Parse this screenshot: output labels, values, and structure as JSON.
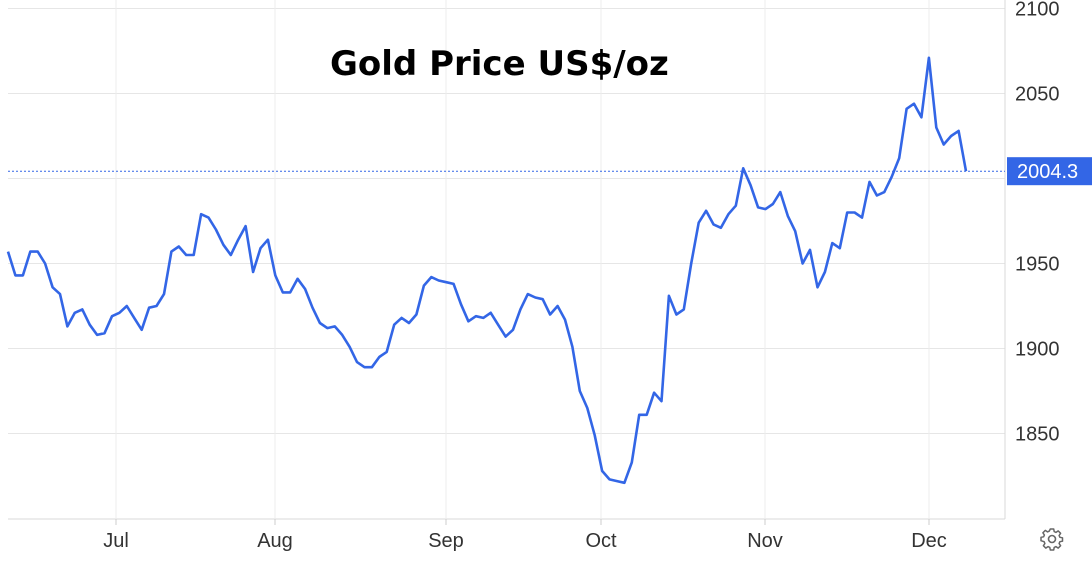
{
  "chart_data": {
    "type": "line",
    "title": "Gold Price US$/oz",
    "xlabel": "",
    "ylabel": "",
    "ylim": [
      1800,
      2100
    ],
    "y_ticks": [
      "2100",
      "2050",
      "1950",
      "1900",
      "1850"
    ],
    "x_ticks": [
      "Jul",
      "Aug",
      "Sep",
      "Oct",
      "Nov",
      "Dec"
    ],
    "last_value_label": "2004.3",
    "grid": true,
    "line_color": "#3366e6",
    "label_bg_color": "#3366e6",
    "series": [
      {
        "values": [
          1957,
          1943,
          1943,
          1957,
          1957,
          1950,
          1936,
          1932,
          1913,
          1921,
          1923,
          1914,
          1908,
          1909,
          1919,
          1921,
          1925,
          1918,
          1911,
          1924,
          1925,
          1932,
          1957,
          1960,
          1955,
          1955,
          1979,
          1977,
          1970,
          1961,
          1955,
          1964,
          1972,
          1945,
          1959,
          1964,
          1943,
          1933,
          1933,
          1941,
          1935,
          1924,
          1915,
          1912,
          1913,
          1908,
          1901,
          1892,
          1889,
          1889,
          1895,
          1898,
          1914,
          1918,
          1915,
          1920,
          1937,
          1942,
          1940,
          1939,
          1938,
          1926,
          1916,
          1919,
          1918,
          1921,
          1914,
          1907,
          1911,
          1923,
          1932,
          1930,
          1929,
          1920,
          1925,
          1917,
          1901,
          1875,
          1865,
          1849,
          1828,
          1823,
          1822,
          1821,
          1833,
          1861,
          1861,
          1874,
          1869,
          1931,
          1920,
          1923,
          1950,
          1974,
          1981,
          1973,
          1971,
          1979,
          1984,
          2006,
          1996,
          1983,
          1982,
          1985,
          1992,
          1978,
          1969,
          1950,
          1958,
          1936,
          1945,
          1962,
          1959,
          1980,
          1980,
          1977,
          1998,
          1990,
          1992,
          2001,
          2012,
          2041,
          2044,
          2036,
          2071,
          2030,
          2020,
          2025,
          2028,
          2004.3
        ]
      }
    ]
  }
}
